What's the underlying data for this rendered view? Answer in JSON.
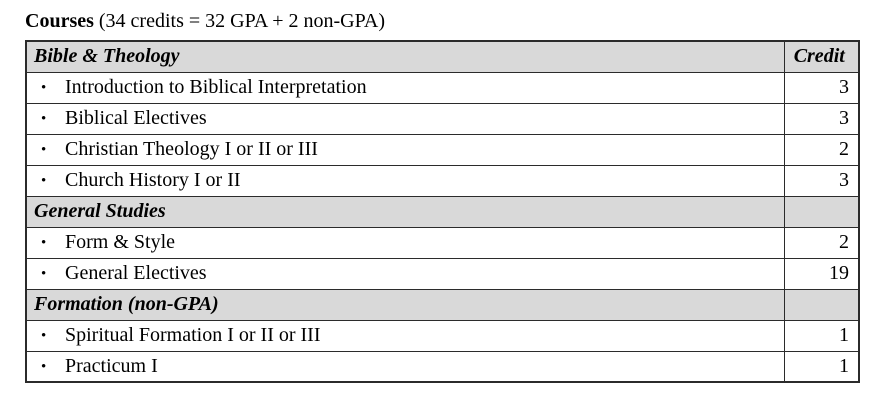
{
  "title": {
    "label_bold": "Courses",
    "label_rest": " (34 credits = 32 GPA + 2 non-GPA)"
  },
  "table": {
    "bullet": "•",
    "header": {
      "section": "Bible & Theology",
      "credit": "Credit"
    },
    "rows": [
      {
        "type": "course",
        "label": "Introduction to Biblical Interpretation",
        "credit": "3"
      },
      {
        "type": "course",
        "label": "Biblical Electives",
        "credit": "3"
      },
      {
        "type": "course",
        "label": "Christian Theology I or II or III",
        "credit": "2"
      },
      {
        "type": "course",
        "label": "Church History I or II",
        "credit": "3"
      },
      {
        "type": "section",
        "label": "General Studies",
        "credit": ""
      },
      {
        "type": "course",
        "label": "Form & Style",
        "credit": "2"
      },
      {
        "type": "course",
        "label": "General Electives",
        "credit": "19"
      },
      {
        "type": "section",
        "label": "Formation (non-GPA)",
        "credit": ""
      },
      {
        "type": "course",
        "label": "Spiritual Formation I or II or III",
        "credit": "1"
      },
      {
        "type": "course",
        "label": "Practicum I",
        "credit": "1"
      }
    ],
    "colors": {
      "section_bg": "#d9d9d9",
      "border": "#2b2b2b",
      "text": "#000000",
      "page_bg": "#ffffff"
    }
  }
}
